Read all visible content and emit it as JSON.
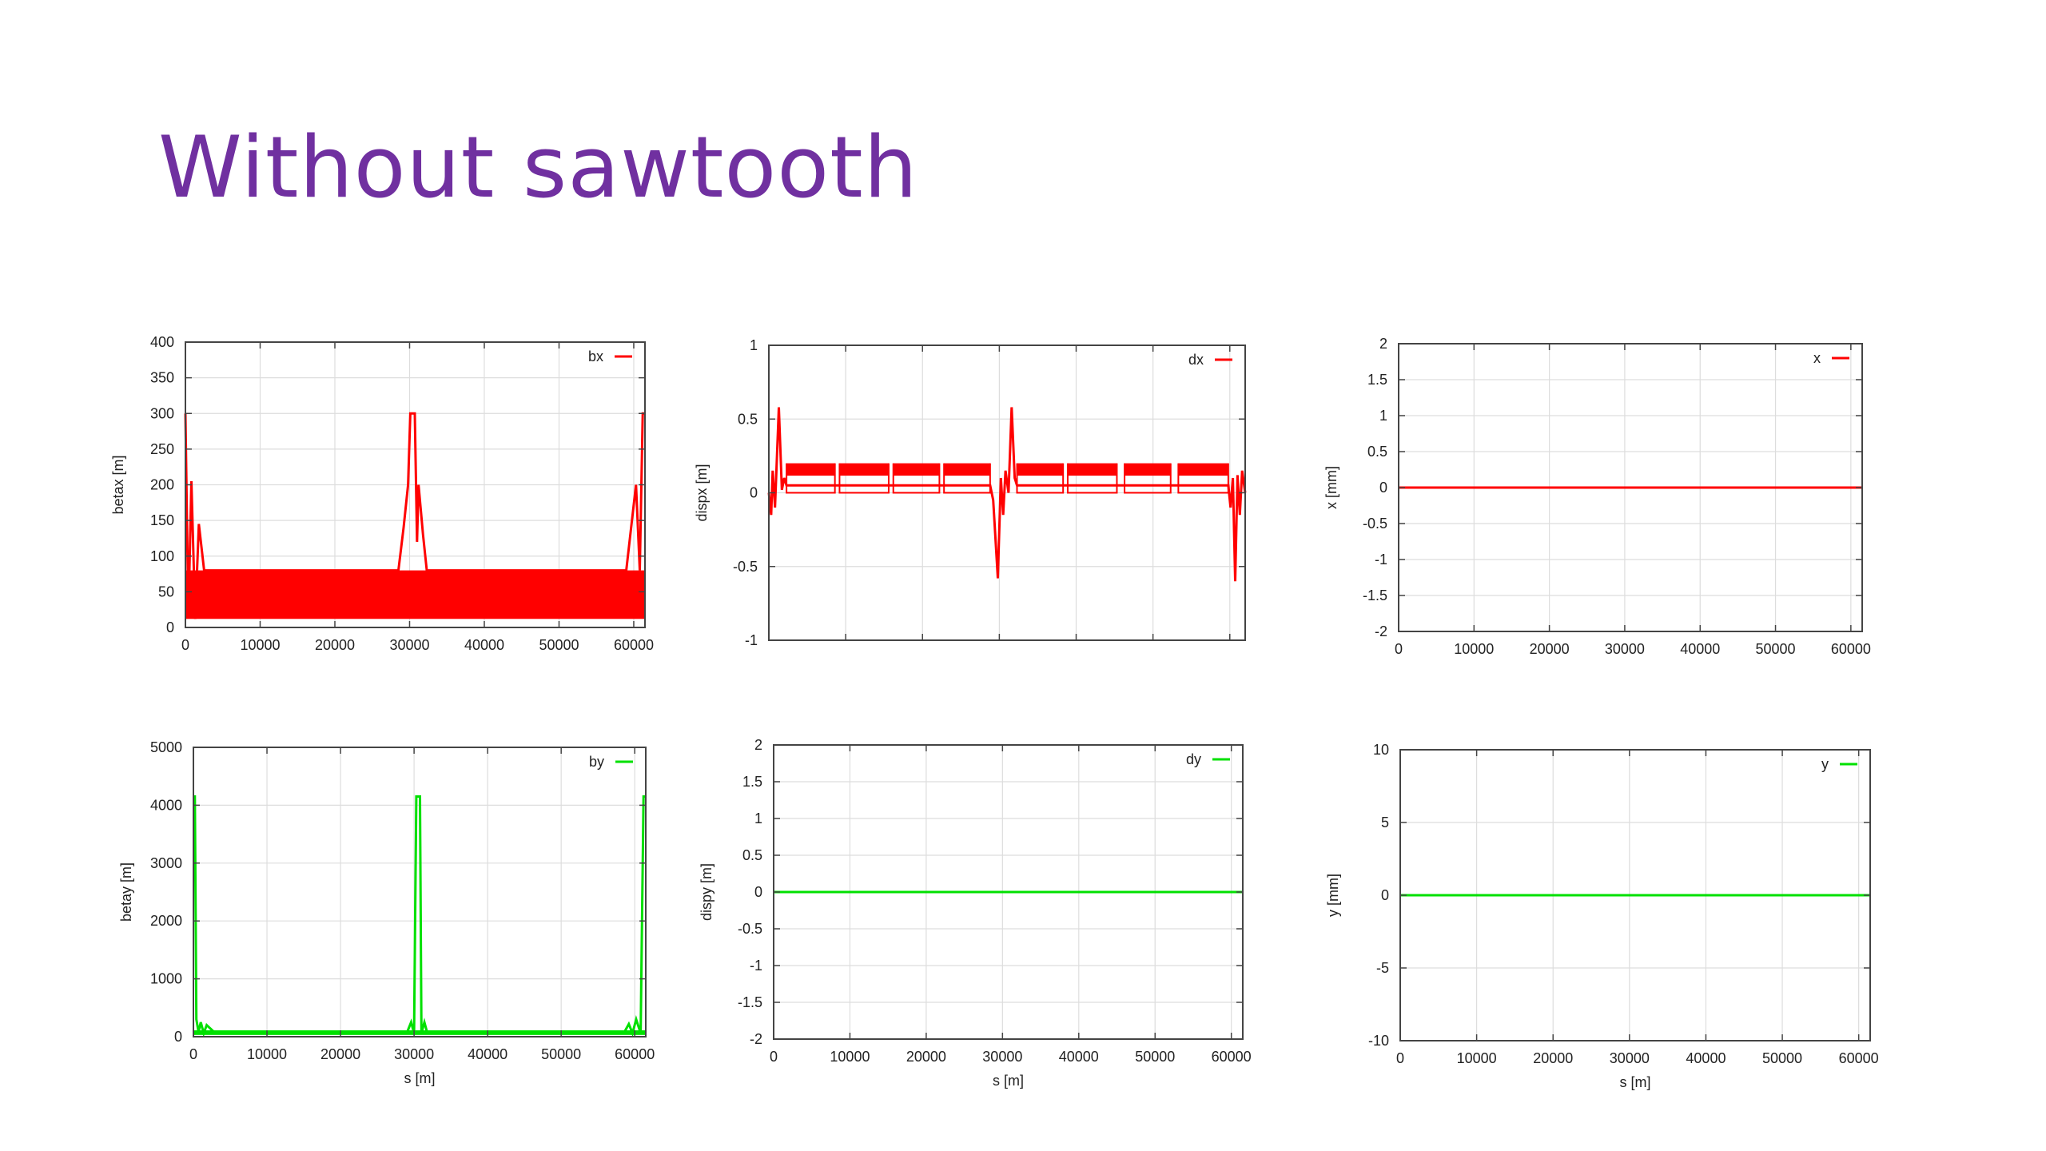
{
  "slide": {
    "title": "Without sawtooth"
  },
  "colors": {
    "title": "#7030a0",
    "red_series": "#ff0000",
    "green_series": "#00e000",
    "frame": "#444444",
    "grid": "#dddddd",
    "text": "#222222"
  },
  "chart_data": [
    {
      "type": "line",
      "legend": "bx",
      "legend_position": "top-right",
      "ylabel": "betax [m]",
      "xlabel": "",
      "xlim": [
        0,
        61500
      ],
      "ylim": [
        0,
        400
      ],
      "xticks": [
        0,
        10000,
        20000,
        30000,
        40000,
        50000,
        60000
      ],
      "xtick_labels": [
        "0",
        "10000",
        "20000",
        "30000",
        "40000",
        "50000",
        "60000"
      ],
      "yticks": [
        0,
        50,
        100,
        150,
        200,
        250,
        300,
        350,
        400
      ],
      "ytick_labels": [
        "0",
        "50",
        "100",
        "150",
        "200",
        "250",
        "300",
        "350",
        "400"
      ],
      "grid": true,
      "series": [
        {
          "color": "red",
          "x": [
            0,
            400,
            800,
            1300,
            1800,
            2500,
            3500,
            28500,
            29200,
            29800,
            30100,
            30300,
            30500,
            30700,
            31000,
            31200,
            31800,
            32300,
            33000,
            58000,
            59000,
            59700,
            60300,
            60800,
            61200,
            61500
          ],
          "y": [
            300,
            15,
            205,
            12,
            145,
            80,
            80,
            80,
            140,
            200,
            300,
            300,
            300,
            300,
            120,
            200,
            130,
            80,
            80,
            80,
            80,
            145,
            200,
            80,
            300,
            300
          ],
          "band": {
            "x_start": 0,
            "x_end": 61500,
            "y_low": 12,
            "y_high": 80,
            "note": "dense oscillation"
          }
        }
      ]
    },
    {
      "type": "line",
      "legend": "dx",
      "legend_position": "top-right",
      "ylabel": "dispx [m]",
      "xlabel": "",
      "xlim": [
        0,
        62000
      ],
      "ylim": [
        -1,
        1
      ],
      "xticks": [],
      "xtick_labels": [],
      "yticks": [
        -1,
        -0.5,
        0,
        0.5,
        1
      ],
      "ytick_labels": [
        "-1",
        "-0.5",
        "0",
        "0.5",
        "1"
      ],
      "grid": true,
      "series": [
        {
          "color": "red",
          "x": [
            0,
            300,
            500,
            800,
            1300,
            1700,
            2000,
            2300,
            28800,
            29200,
            29800,
            30200,
            30500,
            30800,
            31200,
            31600,
            32000,
            32300,
            59800,
            60100,
            60400,
            60700,
            61000,
            61300,
            61600,
            62000
          ],
          "y": [
            0,
            -0.15,
            0.15,
            -0.1,
            0.58,
            0.02,
            0.1,
            0.05,
            0.05,
            -0.05,
            -0.58,
            0.1,
            -0.15,
            0.15,
            0.0,
            0.58,
            0.1,
            0.05,
            0.05,
            -0.1,
            0.1,
            -0.6,
            0.12,
            -0.15,
            0.15,
            0.0
          ],
          "segments": [
            {
              "x_start": 2300,
              "x_end": 8600
            },
            {
              "x_start": 9200,
              "x_end": 15600
            },
            {
              "x_start": 16200,
              "x_end": 22200
            },
            {
              "x_start": 22800,
              "x_end": 28800
            },
            {
              "x_start": 32300,
              "x_end": 38300
            },
            {
              "x_start": 38900,
              "x_end": 45300
            },
            {
              "x_start": 46300,
              "x_end": 52300
            },
            {
              "x_start": 53300,
              "x_end": 59800
            }
          ],
          "segment_y_low": 0.0,
          "segment_y_high": 0.2
        }
      ]
    },
    {
      "type": "line",
      "legend": "x",
      "legend_position": "top-right",
      "ylabel": "x [mm]",
      "xlabel": "",
      "xlim": [
        0,
        61500
      ],
      "ylim": [
        -2,
        2
      ],
      "xticks": [
        0,
        10000,
        20000,
        30000,
        40000,
        50000,
        60000
      ],
      "xtick_labels": [
        "0",
        "10000",
        "20000",
        "30000",
        "40000",
        "50000",
        "60000"
      ],
      "yticks": [
        -2,
        -1.5,
        -1,
        -0.5,
        0,
        0.5,
        1,
        1.5,
        2
      ],
      "ytick_labels": [
        "-2",
        "-1.5",
        "-1",
        "-0.5",
        "0",
        "0.5",
        "1",
        "1.5",
        "2"
      ],
      "grid": true,
      "series": [
        {
          "color": "red",
          "x": [
            0,
            61500
          ],
          "y": [
            0,
            0
          ]
        }
      ]
    },
    {
      "type": "line",
      "legend": "by",
      "legend_position": "top-right",
      "ylabel": "betay [m]",
      "xlabel": "s [m]",
      "xlim": [
        0,
        61500
      ],
      "ylim": [
        0,
        5000
      ],
      "xticks": [
        0,
        10000,
        20000,
        30000,
        40000,
        50000,
        60000
      ],
      "xtick_labels": [
        "0",
        "10000",
        "20000",
        "30000",
        "40000",
        "50000",
        "60000"
      ],
      "yticks": [
        0,
        1000,
        2000,
        3000,
        4000,
        5000
      ],
      "ytick_labels": [
        "0",
        "1000",
        "2000",
        "3000",
        "4000",
        "5000"
      ],
      "grid": true,
      "series": [
        {
          "color": "green",
          "x": [
            0,
            200,
            400,
            700,
            1000,
            1400,
            1800,
            3000,
            29000,
            29600,
            30000,
            30300,
            30500,
            30800,
            31000,
            31400,
            31800,
            33000,
            58500,
            59200,
            59700,
            60200,
            60800,
            61200,
            61500
          ],
          "y": [
            4150,
            4150,
            300,
            80,
            250,
            60,
            200,
            60,
            60,
            250,
            60,
            4150,
            4150,
            4150,
            60,
            250,
            60,
            60,
            60,
            220,
            60,
            300,
            60,
            4150,
            4150
          ],
          "band": {
            "x_start": 0,
            "x_end": 61500,
            "y_low": 30,
            "y_high": 110,
            "note": "dense oscillation"
          }
        }
      ]
    },
    {
      "type": "line",
      "legend": "dy",
      "legend_position": "top-right",
      "ylabel": "dispy [m]",
      "xlabel": "s [m]",
      "xlim": [
        0,
        61500
      ],
      "ylim": [
        -2,
        2
      ],
      "xticks": [
        0,
        10000,
        20000,
        30000,
        40000,
        50000,
        60000
      ],
      "xtick_labels": [
        "0",
        "10000",
        "20000",
        "30000",
        "40000",
        "50000",
        "60000"
      ],
      "yticks": [
        -2,
        -1.5,
        -1,
        -0.5,
        0,
        0.5,
        1,
        1.5,
        2
      ],
      "ytick_labels": [
        "-2",
        "-1.5",
        "-1",
        "-0.5",
        "0",
        "0.5",
        "1",
        "1.5",
        "2"
      ],
      "grid": true,
      "series": [
        {
          "color": "green",
          "x": [
            0,
            61500
          ],
          "y": [
            0,
            0
          ]
        }
      ]
    },
    {
      "type": "line",
      "legend": "y",
      "legend_position": "top-right",
      "ylabel": "y [mm]",
      "xlabel": "s [m]",
      "xlim": [
        0,
        61500
      ],
      "ylim": [
        -10,
        10
      ],
      "xticks": [
        0,
        10000,
        20000,
        30000,
        40000,
        50000,
        60000
      ],
      "xtick_labels": [
        "0",
        "10000",
        "20000",
        "30000",
        "40000",
        "50000",
        "60000"
      ],
      "yticks": [
        -10,
        -5,
        0,
        5,
        10
      ],
      "ytick_labels": [
        "-10",
        "-5",
        "0",
        "5",
        "10"
      ],
      "grid": true,
      "series": [
        {
          "color": "green",
          "x": [
            0,
            61500
          ],
          "y": [
            0,
            0
          ]
        }
      ]
    }
  ]
}
